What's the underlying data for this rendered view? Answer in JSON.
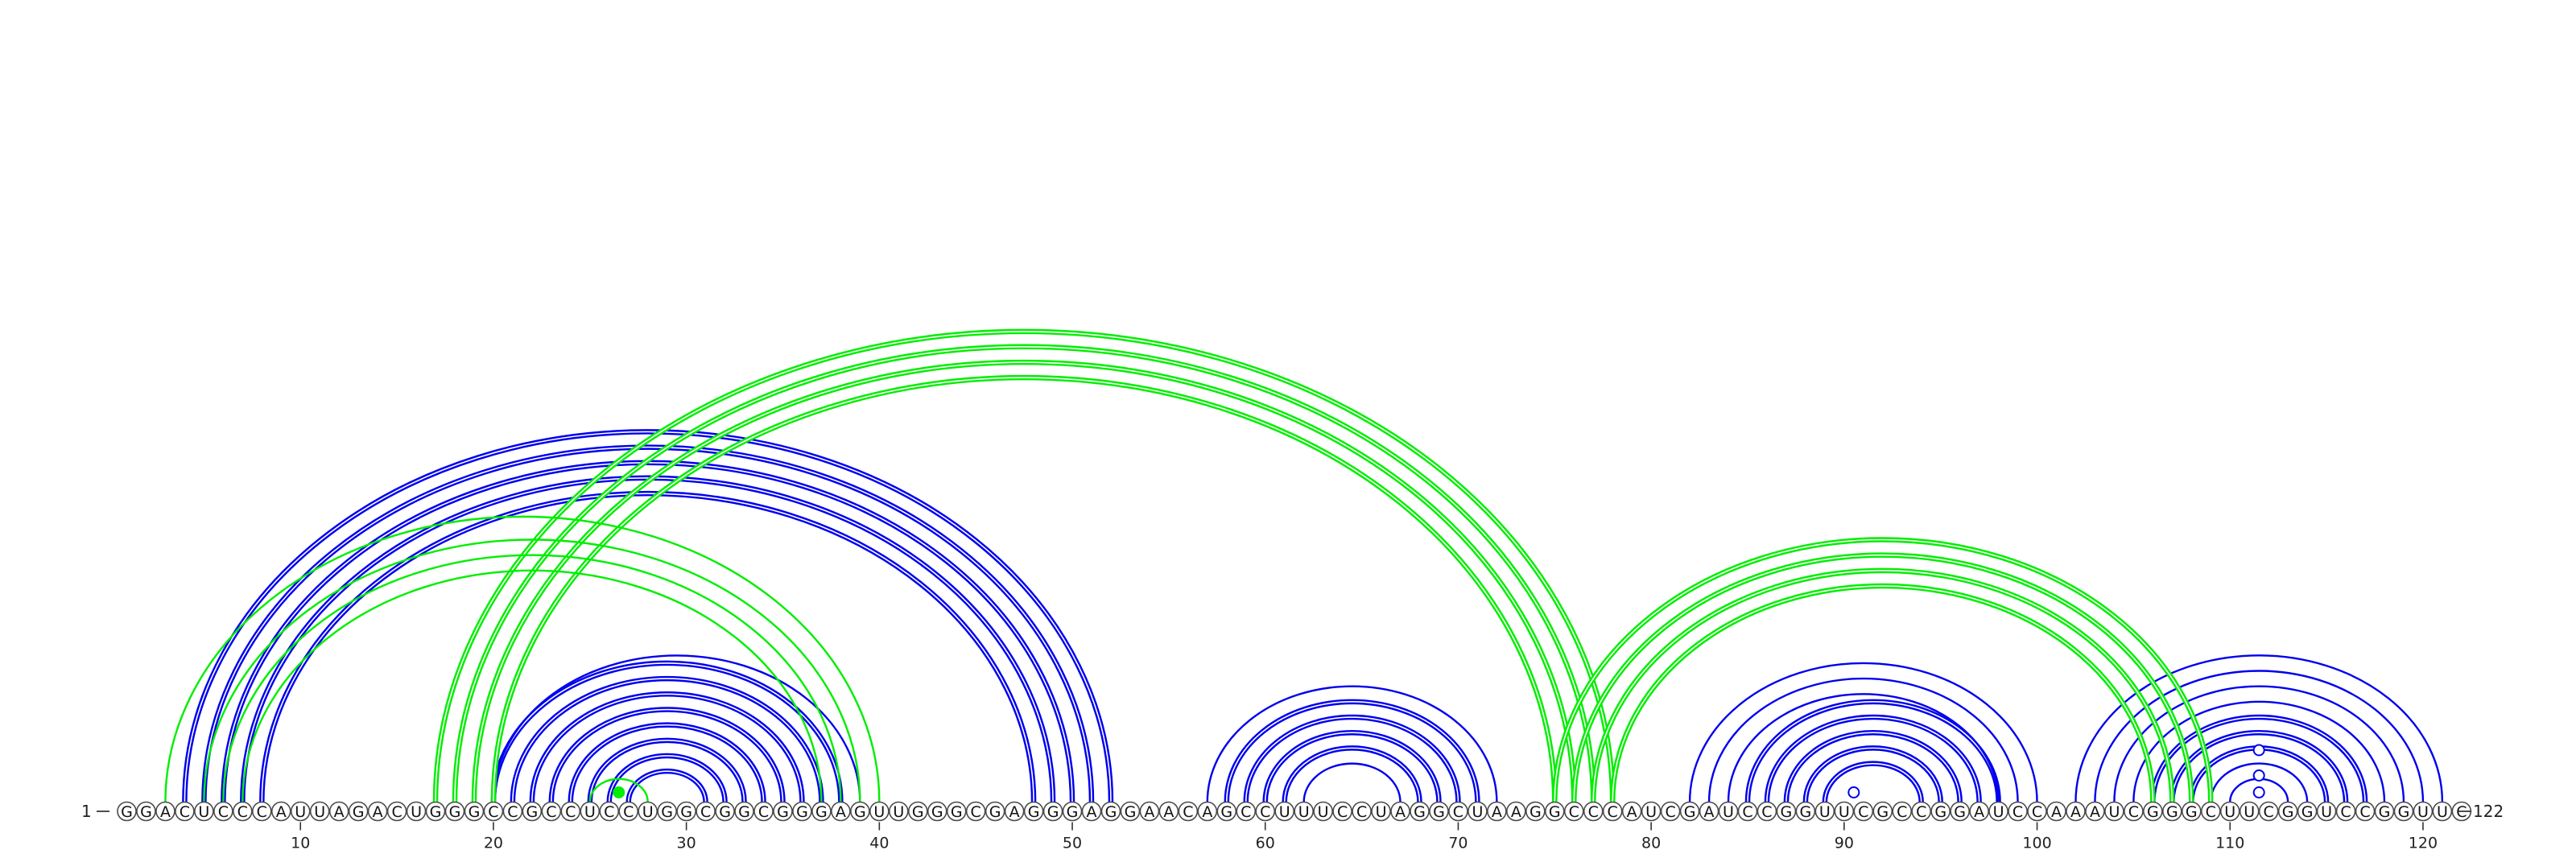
{
  "start_label": "1",
  "end_label": "122",
  "sequence": "GGACUCCCAUUAGACUGGGCCGCCUCCUGGCGGCGGGAGUUGGGCGAGGGAGGAACAGCCUUUCCUAGGCUAAGGCCCAUCGAUCCGGUUCGCCGGAUCCAAAUCGGGCUUCGGUCCGGUUC",
  "colors": {
    "top": "#0000ee",
    "bottom": "#00ee00"
  },
  "chart_data": {
    "type": "arc-diagram",
    "length": 122,
    "ticks": [
      10,
      20,
      30,
      40,
      50,
      60,
      70,
      80,
      90,
      100,
      110,
      120
    ],
    "pair_groups": [
      {
        "structure": "top",
        "double": true,
        "pairs": [
          [
            4,
            52
          ],
          [
            5,
            51
          ],
          [
            6,
            50
          ],
          [
            7,
            49
          ],
          [
            8,
            48
          ]
        ]
      },
      {
        "structure": "top",
        "double": true,
        "pairs": [
          [
            20,
            38
          ],
          [
            21,
            37
          ],
          [
            22,
            36
          ],
          [
            23,
            35
          ],
          [
            24,
            34
          ],
          [
            25,
            33
          ],
          [
            26,
            32
          ],
          [
            27,
            31
          ]
        ]
      },
      {
        "structure": "top",
        "double": false,
        "pairs": [
          [
            20,
            39
          ]
        ]
      },
      {
        "structure": "top",
        "double": true,
        "pairs": [
          [
            58,
            71
          ],
          [
            59,
            70
          ],
          [
            60,
            69
          ],
          [
            61,
            68
          ]
        ]
      },
      {
        "structure": "top",
        "double": false,
        "pairs": [
          [
            57,
            72
          ],
          [
            62,
            67
          ]
        ]
      },
      {
        "structure": "top",
        "double": true,
        "pairs": [
          [
            85,
            98
          ],
          [
            86,
            97
          ],
          [
            87,
            96
          ],
          [
            88,
            95
          ],
          [
            89,
            94
          ]
        ]
      },
      {
        "structure": "top",
        "double": false,
        "pairs": [
          [
            82,
            100
          ],
          [
            83,
            99
          ],
          [
            84,
            98
          ]
        ]
      },
      {
        "structure": "top",
        "double": true,
        "pairs": [
          [
            106,
            117
          ],
          [
            107,
            116
          ],
          [
            108,
            115
          ]
        ]
      },
      {
        "structure": "top",
        "double": false,
        "pairs": [
          [
            102,
            121
          ],
          [
            103,
            120
          ],
          [
            104,
            119
          ],
          [
            105,
            118
          ],
          [
            109,
            114
          ],
          [
            110,
            113
          ]
        ]
      },
      {
        "structure": "bottom",
        "double": true,
        "pairs": [
          [
            17,
            78
          ],
          [
            18,
            77
          ],
          [
            19,
            76
          ],
          [
            20,
            75
          ]
        ]
      },
      {
        "structure": "bottom",
        "double": true,
        "pairs": [
          [
            75,
            109
          ],
          [
            76,
            108
          ],
          [
            77,
            107
          ],
          [
            78,
            106
          ]
        ]
      },
      {
        "structure": "bottom",
        "double": false,
        "pairs": [
          [
            3,
            40
          ],
          [
            5,
            39
          ],
          [
            6,
            38
          ],
          [
            7,
            37
          ]
        ]
      },
      {
        "structure": "bottom",
        "double": false,
        "pairs": [
          [
            25,
            28
          ]
        ]
      }
    ],
    "markers": [
      {
        "structure": "bottom",
        "position": 26.5,
        "level": 1,
        "filled": true
      },
      {
        "structure": "top",
        "position": 90.5,
        "level": 1,
        "filled": false
      },
      {
        "structure": "top",
        "position": 111.5,
        "level": 1,
        "filled": false
      },
      {
        "structure": "top",
        "position": 111.5,
        "level": 3,
        "filled": false
      },
      {
        "structure": "top",
        "position": 111.5,
        "level": 6,
        "filled": false
      }
    ]
  }
}
